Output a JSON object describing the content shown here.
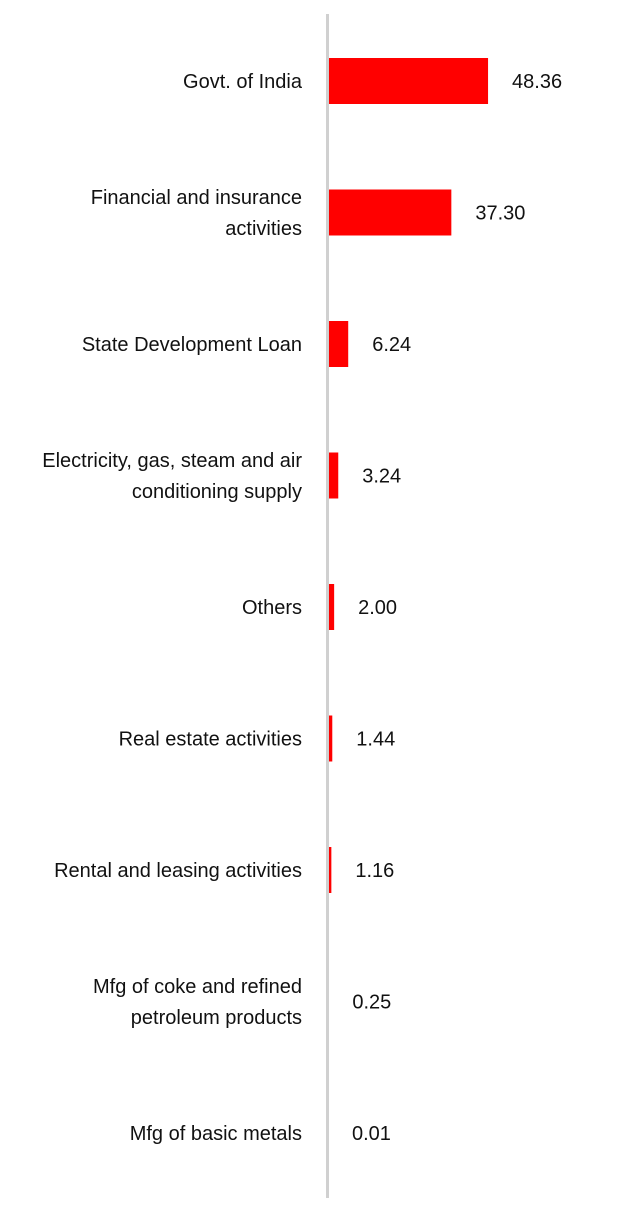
{
  "colors": {
    "bar": "#ff0000",
    "axis": "#d0d0d0",
    "text": "#111111"
  },
  "chart_data": {
    "type": "bar",
    "orientation": "horizontal",
    "categories": [
      "Govt. of India",
      "Financial and insurance activities",
      "State Development Loan",
      "Electricity, gas, steam and air conditioning supply",
      "Others",
      "Real estate activities",
      "Rental and leasing activities",
      "Mfg of coke and refined petroleum products",
      "Mfg of basic metals"
    ],
    "category_lines": [
      [
        "Govt. of India"
      ],
      [
        "Financial and insurance",
        "activities"
      ],
      [
        "State Development Loan"
      ],
      [
        "Electricity, gas, steam and air",
        "conditioning supply"
      ],
      [
        "Others"
      ],
      [
        "Real estate activities"
      ],
      [
        "Rental and leasing activities"
      ],
      [
        "Mfg of coke and refined",
        "petroleum products"
      ],
      [
        "Mfg of basic metals"
      ]
    ],
    "values": [
      48.36,
      37.3,
      6.24,
      3.24,
      2.0,
      1.44,
      1.16,
      0.25,
      0.01
    ],
    "value_labels": [
      "48.36",
      "37.30",
      "6.24",
      "3.24",
      "2.00",
      "1.44",
      "1.16",
      "0.25",
      "0.01"
    ],
    "title": "",
    "xlabel": "",
    "ylabel": "",
    "xlim": [
      0,
      60
    ],
    "grid": false,
    "legend": "none"
  }
}
